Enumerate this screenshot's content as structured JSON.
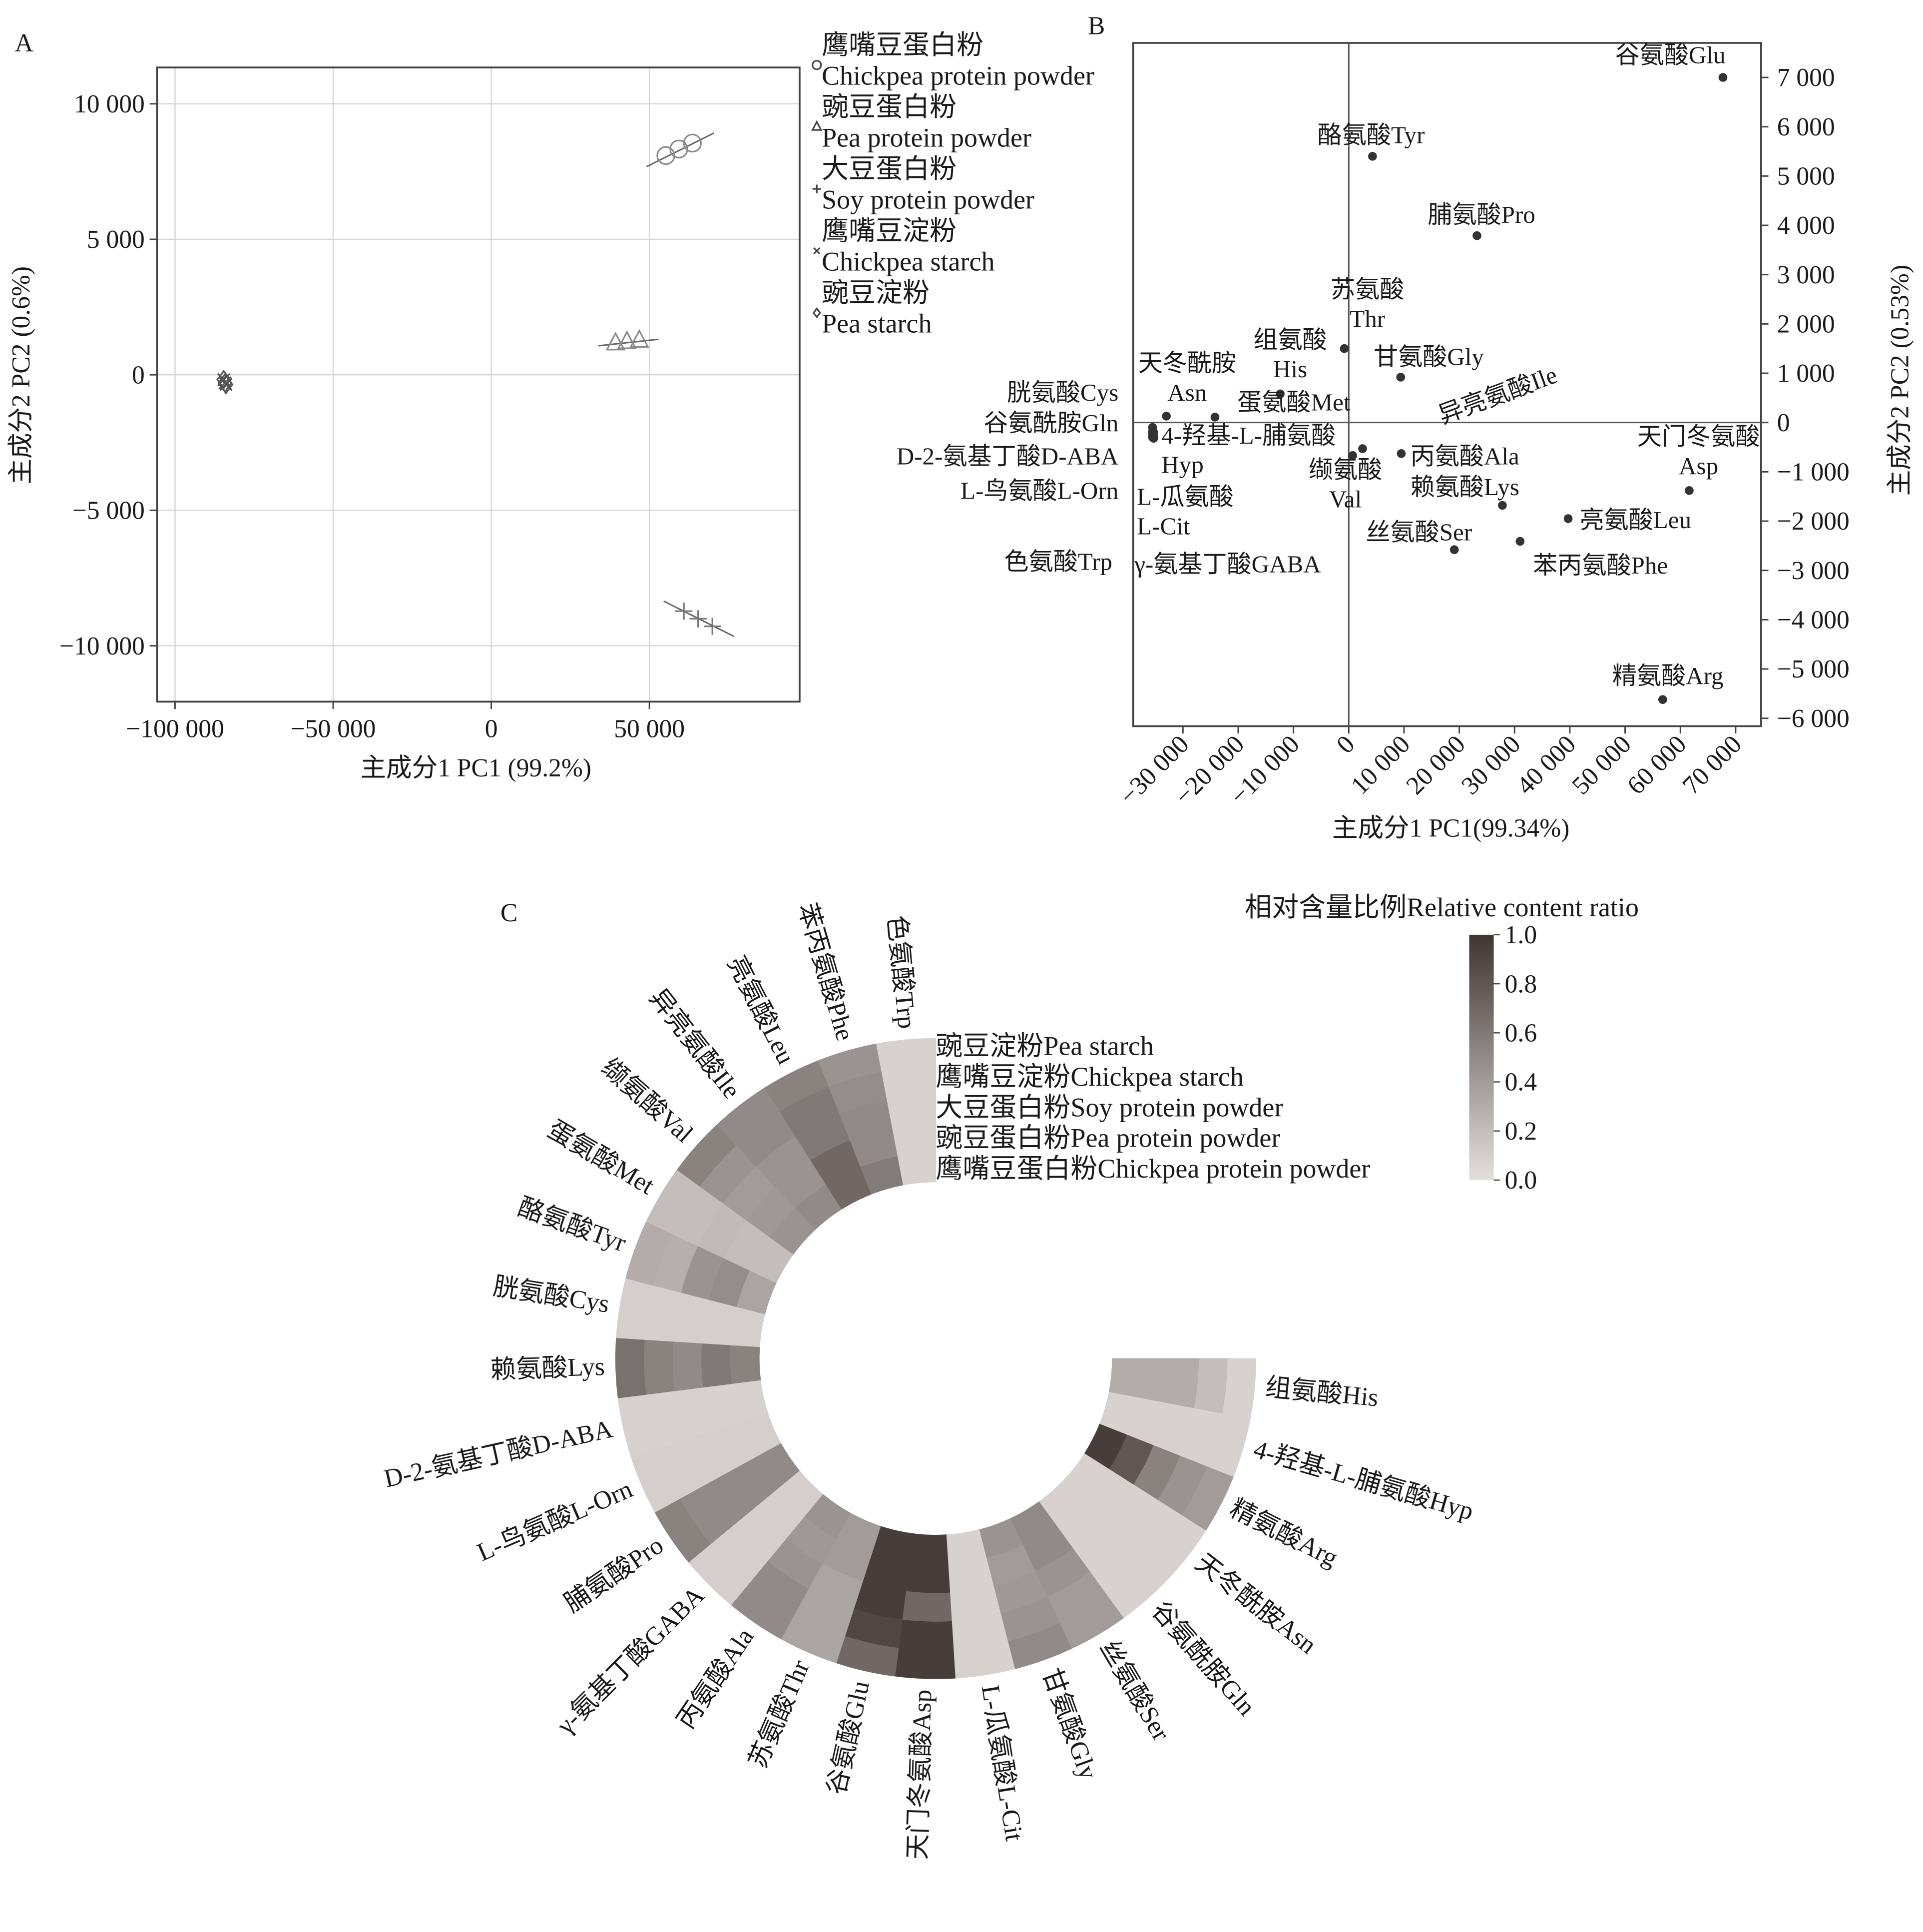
{
  "panels": {
    "a": "A",
    "b": "B",
    "c": "C"
  },
  "chart_data": [
    {
      "type": "scatter",
      "title": "A",
      "xlabel": "主成分1 PC1 (99.2%)",
      "ylabel": "主成分2 PC2 (0.6%)",
      "xlim": [
        -105700,
        97500
      ],
      "ylim": [
        -12060,
        11340
      ],
      "grid": true,
      "legend_position": "right-outside",
      "xticks": [
        {
          "value": -100000,
          "label": "−100 000"
        },
        {
          "value": -50000,
          "label": "−50 000"
        },
        {
          "value": 0,
          "label": "0"
        },
        {
          "value": 50000,
          "label": "50 000"
        }
      ],
      "yticks": [
        {
          "value": 10000,
          "label": "10 000"
        },
        {
          "value": 5000,
          "label": "5 000"
        },
        {
          "value": 0,
          "label": "0"
        },
        {
          "value": -5000,
          "label": "−5 000"
        },
        {
          "value": -10000,
          "label": "−10 000"
        }
      ],
      "series": [
        {
          "name_cn": "鹰嘴豆蛋白粉",
          "name_en": "Chickpea protein powder",
          "marker": "circle",
          "points": [
            [
              55200,
              8090
            ],
            [
              59300,
              8330
            ],
            [
              63600,
              8550
            ]
          ],
          "fit_line": [
            [
              49100,
              7680
            ],
            [
              70400,
              8920
            ]
          ]
        },
        {
          "name_cn": "豌豆蛋白粉",
          "name_en": "Pea protein powder",
          "marker": "triangle",
          "points": [
            [
              39300,
              1150
            ],
            [
              42900,
              1200
            ],
            [
              46800,
              1250
            ]
          ],
          "fit_line": [
            [
              33900,
              1070
            ],
            [
              52900,
              1310
            ]
          ]
        },
        {
          "name_cn": "大豆蛋白粉",
          "name_en": "Soy protein powder",
          "marker": "plus",
          "points": [
            [
              60900,
              -8720
            ],
            [
              65400,
              -9000
            ],
            [
              69900,
              -9280
            ]
          ],
          "fit_line": [
            [
              54500,
              -8350
            ],
            [
              76700,
              -9650
            ]
          ]
        },
        {
          "name_cn": "鹰嘴豆淀粉",
          "name_en": "Chickpea starch",
          "marker": "cross",
          "points": [
            [
              -84600,
              -180
            ],
            [
              -84200,
              -300
            ],
            [
              -83900,
              -360
            ]
          ],
          "fit_line": null
        },
        {
          "name_cn": "豌豆淀粉",
          "name_en": "Pea starch",
          "marker": "diamond",
          "points": [
            [
              -84600,
              -180
            ],
            [
              -84200,
              -300
            ],
            [
              -83900,
              -360
            ]
          ],
          "fit_line": null
        }
      ]
    },
    {
      "type": "scatter",
      "title": "B",
      "xlabel": "主成分1 PC1(99.34%)",
      "ylabel": "主成分2 PC2 (0.53%)",
      "xlim": [
        -39000,
        74600
      ],
      "ylim": [
        -6160,
        7700
      ],
      "grid": false,
      "xticks": [
        {
          "value": -30000,
          "label": "−30 000"
        },
        {
          "value": -20000,
          "label": "−20 000"
        },
        {
          "value": -10000,
          "label": "−10 000"
        },
        {
          "value": 0,
          "label": "0"
        },
        {
          "value": 10000,
          "label": "10 000"
        },
        {
          "value": 20000,
          "label": "20 000"
        },
        {
          "value": 30000,
          "label": "30 000"
        },
        {
          "value": 40000,
          "label": "40 000"
        },
        {
          "value": 50000,
          "label": "50 000"
        },
        {
          "value": 60000,
          "label": "60 000"
        },
        {
          "value": 70000,
          "label": "70 000"
        }
      ],
      "yticks": [
        {
          "value": 7000,
          "label": "7 000"
        },
        {
          "value": 6000,
          "label": "6 000"
        },
        {
          "value": 5000,
          "label": "5 000"
        },
        {
          "value": 4000,
          "label": "4 000"
        },
        {
          "value": 3000,
          "label": "3 000"
        },
        {
          "value": 2000,
          "label": "2 000"
        },
        {
          "value": 1000,
          "label": "1 000"
        },
        {
          "value": 0,
          "label": "0"
        },
        {
          "value": -1000,
          "label": "−1 000"
        },
        {
          "value": -2000,
          "label": "−2 000"
        },
        {
          "value": -3000,
          "label": "−3 000"
        },
        {
          "value": -4000,
          "label": "−4 000"
        },
        {
          "value": -5000,
          "label": "−5 000"
        },
        {
          "value": -6000,
          "label": "−6 000"
        }
      ],
      "points": [
        {
          "label": [
            "谷氨酸Glu"
          ],
          "x": 67700,
          "y": 7000
        },
        {
          "label": [
            "酪氨酸Tyr"
          ],
          "x": 4300,
          "y": 5400
        },
        {
          "label": [
            "脯氨酸Pro"
          ],
          "x": 23200,
          "y": 3790
        },
        {
          "label": [
            "苏氨酸",
            "Thr"
          ],
          "x": -800,
          "y": 1500
        },
        {
          "label": [
            "甘氨酸Gly"
          ],
          "x": 9400,
          "y": 920
        },
        {
          "label": [
            "组氨酸",
            "His"
          ],
          "x": -12400,
          "y": 580
        },
        {
          "label": [
            "天冬酰胺",
            "Asn"
          ],
          "x": -33000,
          "y": 130
        },
        {
          "label": [
            "蛋氨酸Met"
          ],
          "x": -24200,
          "y": 110
        },
        {
          "label": [
            "异亮氨酸Ile"
          ],
          "x": 2500,
          "y": -530
        },
        {
          "label": [
            "缬氨酸",
            "Val"
          ],
          "x": 700,
          "y": -670
        },
        {
          "label": [
            "丙氨酸Ala"
          ],
          "x": 9500,
          "y": -630
        },
        {
          "label": [
            "赖氨酸Lys"
          ],
          "x": 27800,
          "y": -1680
        },
        {
          "label": [
            "天门冬氨酸",
            "Asp"
          ],
          "x": 61600,
          "y": -1380
        },
        {
          "label": [
            "亮氨酸Leu"
          ],
          "x": 39700,
          "y": -1950
        },
        {
          "label": [
            "苯丙氨酸Phe"
          ],
          "x": 31000,
          "y": -2410
        },
        {
          "label": [
            "丝氨酸Ser"
          ],
          "x": 19100,
          "y": -2580
        },
        {
          "label": [
            "精氨酸Arg"
          ],
          "x": 56800,
          "y": -5620
        },
        {
          "label": [
            "胱氨酸Cys"
          ],
          "x": -35500,
          "y": -100
        },
        {
          "label": [
            "谷氨酰胺Gln"
          ],
          "x": -35500,
          "y": -180
        },
        {
          "label": [
            "D-2-氨基丁酸D-ABA"
          ],
          "x": -35500,
          "y": -230
        },
        {
          "label": [
            "L-鸟氨酸L-Orn"
          ],
          "x": -35500,
          "y": -260
        },
        {
          "label": [
            "色氨酸Trp"
          ],
          "x": -35500,
          "y": -300
        },
        {
          "label": [
            "4-羟基-L-脯氨酸",
            "Hyp"
          ],
          "x": -35300,
          "y": -200
        },
        {
          "label": [
            "L-瓜氨酸",
            "L-Cit"
          ],
          "x": -35300,
          "y": -280
        },
        {
          "label": [
            "γ-氨基丁酸GABA"
          ],
          "x": -35300,
          "y": -320
        }
      ]
    },
    {
      "type": "heatmap",
      "layout": "circular",
      "title": "C",
      "colorbar_title": "相对含量比例Relative content ratio",
      "color_range": [
        0,
        1
      ],
      "colors": {
        "low": "#e4dfdd",
        "high": "#3f3533"
      },
      "colorbar_ticks": [
        "1.0",
        "0.8",
        "0.6",
        "0.4",
        "0.2",
        "0.0"
      ],
      "rows_outer_to_inner": [
        "豌豆淀粉Pea starch",
        "鹰嘴豆淀粉Chickpea starch",
        "大豆蛋白粉Soy protein powder",
        "豌豆蛋白粉Pea protein powder",
        "鹰嘴豆蛋白粉Chickpea protein powder"
      ],
      "columns": [
        "色氨酸Trp",
        "苯丙氨酸Phe",
        "亮氨酸Leu",
        "异亮氨酸Ile",
        "缬氨酸Val",
        "蛋氨酸Met",
        "酪氨酸Tyr",
        "胱氨酸Cys",
        "赖氨酸Lys",
        "D-2-氨基丁酸D-ABA",
        "L-鸟氨酸L-Orn",
        "脯氨酸Pro",
        "γ-氨基丁酸GABA",
        "丙氨酸Ala",
        "苏氨酸Thr",
        "谷氨酸Glu",
        "天门冬氨酸Asp",
        "L-瓜氨酸L-Cit",
        "甘氨酸Gly",
        "丝氨酸Ser",
        "谷氨酰胺Gln",
        "天冬酰胺Asn",
        "精氨酸Arg",
        "4-羟基-L-脯氨酸Hyp",
        "组氨酸His"
      ],
      "values": [
        [
          0.08,
          0.08,
          0.08,
          0.08,
          0.08
        ],
        [
          0.45,
          0.48,
          0.5,
          0.5,
          0.58
        ],
        [
          0.55,
          0.6,
          0.6,
          0.7,
          0.7
        ],
        [
          0.5,
          0.5,
          0.45,
          0.45,
          0.5
        ],
        [
          0.55,
          0.45,
          0.4,
          0.42,
          0.45
        ],
        [
          0.2,
          0.2,
          0.22,
          0.2,
          0.2
        ],
        [
          0.3,
          0.28,
          0.45,
          0.48,
          0.35
        ],
        [
          0.1,
          0.1,
          0.1,
          0.1,
          0.1
        ],
        [
          0.65,
          0.55,
          0.5,
          0.6,
          0.55
        ],
        [
          0.08,
          0.08,
          0.08,
          0.08,
          0.08
        ],
        [
          0.1,
          0.1,
          0.1,
          0.1,
          0.1
        ],
        [
          0.55,
          0.5,
          0.5,
          0.5,
          0.5
        ],
        [
          0.1,
          0.1,
          0.1,
          0.1,
          0.1
        ],
        [
          0.5,
          0.5,
          0.45,
          0.42,
          0.45
        ],
        [
          0.35,
          0.35,
          0.35,
          0.4,
          0.4
        ],
        [
          0.7,
          0.9,
          0.95,
          0.95,
          0.95
        ],
        [
          0.95,
          0.95,
          0.7,
          0.95,
          0.95
        ],
        [
          0.08,
          0.08,
          0.08,
          0.08,
          0.08
        ],
        [
          0.5,
          0.45,
          0.42,
          0.4,
          0.45
        ],
        [
          0.4,
          0.4,
          0.45,
          0.5,
          0.5
        ],
        [
          0.08,
          0.08,
          0.08,
          0.08,
          0.08
        ],
        [
          0.08,
          0.08,
          0.08,
          0.08,
          0.08
        ],
        [
          0.4,
          0.45,
          0.55,
          0.8,
          0.95
        ],
        [
          0.08,
          0.08,
          0.08,
          0.08,
          0.08
        ],
        [
          0.08,
          0.2,
          0.3,
          0.3,
          0.3
        ]
      ]
    }
  ]
}
